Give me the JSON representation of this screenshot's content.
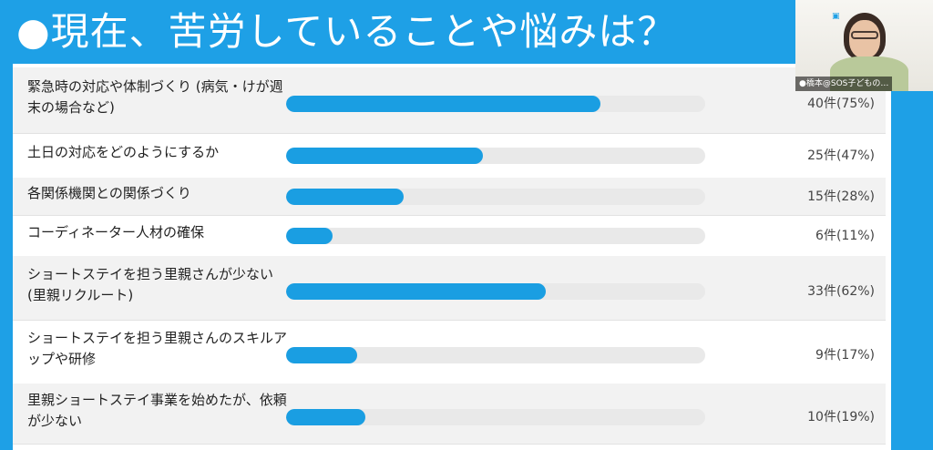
{
  "slide": {
    "title": "●現在、苦労していることや悩みは？"
  },
  "video": {
    "participant_name": "●橋本@SOS子どもの…"
  },
  "colors": {
    "background": "#1ea0e6",
    "bar_fill": "#1a9ee2",
    "bar_track": "#e9e9e9"
  },
  "chart_data": {
    "type": "bar",
    "orientation": "horizontal",
    "title": "●現在、苦労していることや悩みは？",
    "categories": [
      "緊急時の対応や体制づくり (病気・けが週末の場合など)",
      "土日の対応をどのようにするか",
      "各関係機関との関係づくり",
      "コーディネーター人材の確保",
      "ショートステイを担う里親さんが少ない (里親リクルート)",
      "ショートステイを担う里親さんのスキルアップや研修",
      "里親ショートステイ事業を始めたが、依頼が少ない"
    ],
    "values": [
      40,
      25,
      15,
      6,
      33,
      9,
      10
    ],
    "percents": [
      75,
      47,
      28,
      11,
      62,
      17,
      19
    ],
    "labels": [
      "40件(75%)",
      "25件(47%)",
      "15件(28%)",
      "6件(11%)",
      "33件(62%)",
      "9件(17%)",
      "10件(19%)"
    ],
    "xlim": [
      0,
      100
    ]
  }
}
